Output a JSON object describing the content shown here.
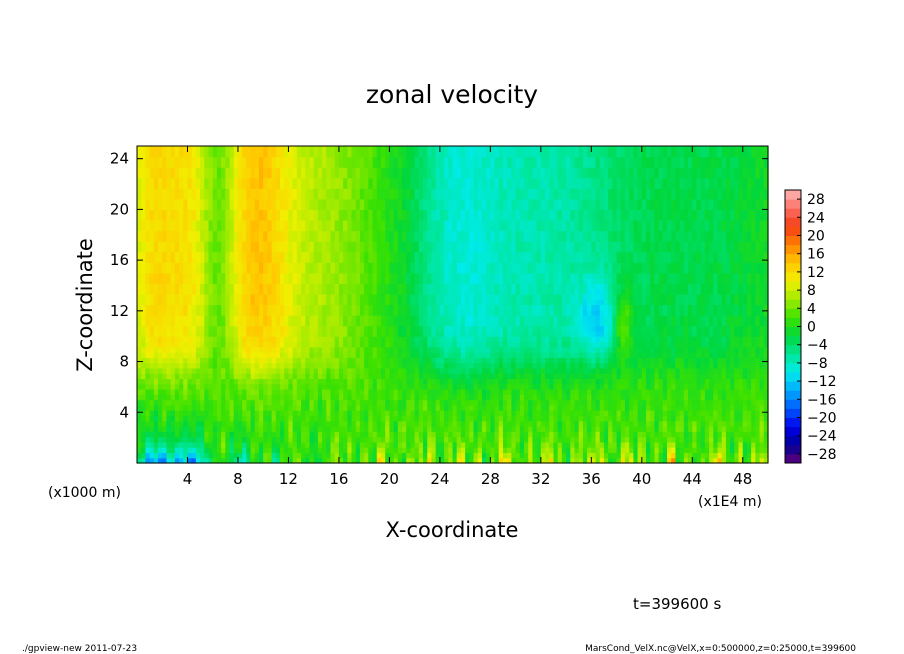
{
  "chart_data": {
    "type": "heatmap",
    "title": "zonal velocity",
    "xlabel": "X-coordinate",
    "ylabel": "Z-coordinate",
    "x_unit_left": "(x1000 m)",
    "x_unit_right": "(x1E4 m)",
    "xlim": [
      0,
      50
    ],
    "ylim": [
      0,
      25
    ],
    "x_ticks": [
      4,
      8,
      12,
      16,
      20,
      24,
      28,
      32,
      36,
      40,
      44,
      48
    ],
    "y_ticks": [
      4,
      8,
      12,
      16,
      20,
      24
    ],
    "colorbar": {
      "range": [
        -30,
        30
      ],
      "tick_values": [
        28,
        24,
        20,
        16,
        12,
        8,
        4,
        0,
        -4,
        -8,
        -12,
        -16,
        -20,
        -24,
        -28
      ],
      "tick_labels": [
        "28",
        "24",
        "20",
        "16",
        "12",
        "8",
        "4",
        "0",
        "−4",
        "−8",
        "−12",
        "−16",
        "−20",
        "−24",
        "−28"
      ]
    },
    "field_description": {
      "upper_left_maximum": 18,
      "lower_left_minimum": -24,
      "upper_right_minimum": -10,
      "near_surface_peaks": 14
    },
    "time_label": "t=399600 s"
  },
  "footer": {
    "left": "./gpview-new   2011-07-23",
    "right": "MarsCond_VelX.nc@VelX,x=0:500000,z=0:25000,t=399600"
  }
}
